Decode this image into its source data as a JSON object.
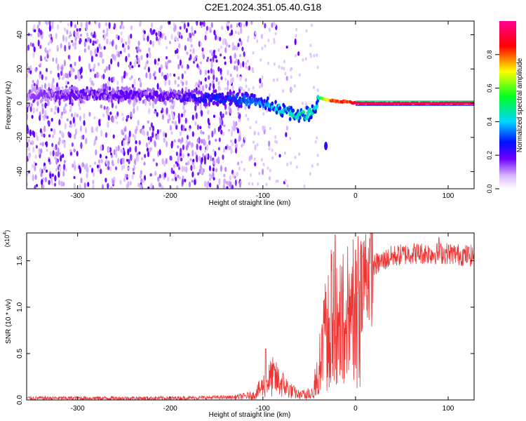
{
  "title": "C2E1.2024.351.05.40.G18",
  "colorbar": {
    "label": "Normalized spectral amplitude",
    "ticks": [
      "0.0",
      "0.2",
      "0.4",
      "0.6",
      "0.8"
    ]
  },
  "chart_data": [
    {
      "type": "heatmap",
      "xlabel": "Height of straight line (km)",
      "ylabel": "Frequency (Hz)",
      "xlim": [
        -355,
        128
      ],
      "ylim": [
        -50,
        48
      ],
      "xticks": [
        "-300",
        "-200",
        "-100",
        "0",
        "100"
      ],
      "yticks": [
        "-40",
        "-20",
        "0",
        "20",
        "40"
      ],
      "xtick_values": [
        -300,
        -200,
        -100,
        0,
        100
      ],
      "ytick_values": [
        -40,
        -20,
        0,
        20,
        40
      ],
      "ridge": {
        "x": [
          -350,
          -300,
          -250,
          -200,
          -150,
          -120,
          -100,
          -80,
          -65,
          -55,
          -45,
          -40,
          -30,
          -20,
          -10,
          0,
          50,
          128
        ],
        "frequency": [
          5,
          5,
          5,
          4,
          3,
          2,
          0,
          -4,
          -7,
          -7,
          -5,
          3,
          2,
          1,
          1,
          0,
          0,
          0
        ],
        "amplitude": [
          0.15,
          0.2,
          0.2,
          0.2,
          0.3,
          0.35,
          0.4,
          0.45,
          0.5,
          0.5,
          0.45,
          0.5,
          0.8,
          0.9,
          0.9,
          0.95,
          0.97,
          0.97
        ]
      },
      "noise_extent_x": [
        -355,
        -120
      ],
      "colorbar_range": [
        0,
        1
      ]
    },
    {
      "type": "line",
      "xlabel": "Height of straight line (km)",
      "ylabel": "SNR (10 * v/v)",
      "y_multiplier": "(x10",
      "y_multiplier_exp": "4",
      "multiplier_close": ")",
      "xlim": [
        -355,
        128
      ],
      "ylim": [
        0,
        1.8
      ],
      "xticks": [
        "-300",
        "-200",
        "-100",
        "0",
        "100"
      ],
      "yticks": [
        "0.0",
        "0.5",
        "1.0",
        "1.5"
      ],
      "xtick_values": [
        -300,
        -200,
        -100,
        0,
        100
      ],
      "ytick_values": [
        0,
        0.5,
        1.0,
        1.5
      ],
      "color": "#ee3333",
      "envelope": {
        "x": [
          -355,
          -200,
          -130,
          -110,
          -100,
          -90,
          -80,
          -70,
          -60,
          -50,
          -45,
          -40,
          -35,
          -30,
          -25,
          -22,
          -20,
          -15,
          -10,
          0,
          10,
          20,
          30,
          40,
          60,
          80,
          100,
          128
        ],
        "y": [
          0.02,
          0.02,
          0.03,
          0.05,
          0.15,
          0.25,
          0.18,
          0.1,
          0.05,
          0.08,
          0.15,
          0.4,
          0.8,
          1.0,
          1.2,
          1.0,
          1.1,
          1.1,
          1.15,
          1.25,
          1.35,
          1.45,
          1.5,
          1.55,
          1.58,
          1.58,
          1.58,
          1.55
        ]
      },
      "peaks": [
        {
          "x": -97,
          "y": 0.55
        },
        {
          "x": -22,
          "y": 1.78
        },
        {
          "x": 90,
          "y": 1.75
        }
      ]
    }
  ]
}
